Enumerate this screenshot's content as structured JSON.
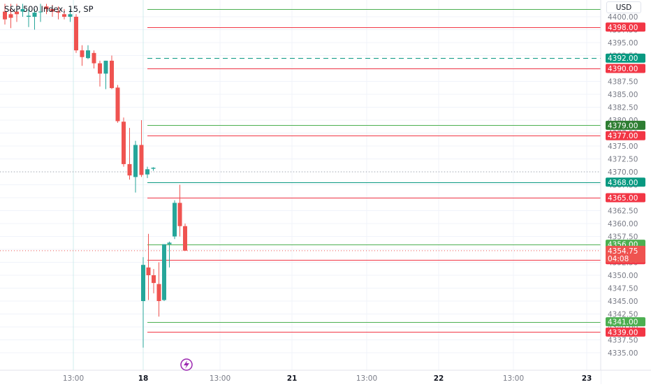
{
  "header": {
    "title": "S&P 500 Index, 15, SP",
    "currency": "USD"
  },
  "colors": {
    "bull": "#26a69a",
    "bear": "#ef5350",
    "green_line": "#4caf50",
    "teal_line": "#089981",
    "red_line": "#f23645",
    "grid": "#f0f3fa",
    "axis_text": "#787b86",
    "session_line": "#d1ecec"
  },
  "chart_data": {
    "type": "candlestick",
    "title": "S&P 500 Index, 15, SP",
    "currency": "USD",
    "y_range": [
      4334,
      4402
    ],
    "y_ticks": [
      "4400.00",
      "4397.50",
      "4395.00",
      "4392.50",
      "4390.00",
      "4387.50",
      "4385.00",
      "4382.50",
      "4380.00",
      "4377.50",
      "4375.00",
      "4372.50",
      "4370.00",
      "4367.50",
      "4365.00",
      "4362.50",
      "4360.00",
      "4357.50",
      "4355.00",
      "4352.50",
      "4350.00",
      "4347.50",
      "4345.00",
      "4342.50",
      "4340.00",
      "4337.50",
      "4335.00"
    ],
    "x_ticks": [
      "13:00",
      "18",
      "13:00",
      "21",
      "13:00",
      "22",
      "13:00",
      "23"
    ],
    "candles": [
      {
        "o": 4401.0,
        "h": 4402.5,
        "l": 4398.5,
        "c": 4399.5
      },
      {
        "o": 4400.5,
        "h": 4402.5,
        "l": 4397.8,
        "c": 4399.8
      },
      {
        "o": 4401.0,
        "h": 4402.5,
        "l": 4399.0,
        "c": 4400.5
      },
      {
        "o": 4401.0,
        "h": 4402.5,
        "l": 4400.0,
        "c": 4401.5
      },
      {
        "o": 4400.0,
        "h": 4401.5,
        "l": 4398.0,
        "c": 4400.2
      },
      {
        "o": 4400.0,
        "h": 4401.5,
        "l": 4397.5,
        "c": 4400.8
      },
      {
        "o": 4401.0,
        "h": 4402.5,
        "l": 4399.0,
        "c": 4401.0
      },
      {
        "o": 4402.0,
        "h": 4402.5,
        "l": 4400.5,
        "c": 4401.5
      },
      {
        "o": 4401.5,
        "h": 4402.3,
        "l": 4400.0,
        "c": 4401.0
      },
      {
        "o": 4401.0,
        "h": 4402.0,
        "l": 4399.5,
        "c": 4400.8
      },
      {
        "o": 4400.5,
        "h": 4401.5,
        "l": 4399.5,
        "c": 4400.0
      },
      {
        "o": 4400.0,
        "h": 4401.5,
        "l": 4399.0,
        "c": 4400.5
      },
      {
        "o": 4400.0,
        "h": 4400.5,
        "l": 4393.0,
        "c": 4393.5
      },
      {
        "o": 4393.5,
        "h": 4394.5,
        "l": 4390.5,
        "c": 4392.2
      },
      {
        "o": 4392.0,
        "h": 4394.5,
        "l": 4391.8,
        "c": 4393.5
      },
      {
        "o": 4393.0,
        "h": 4393.5,
        "l": 4390.0,
        "c": 4391.0
      },
      {
        "o": 4391.0,
        "h": 4391.5,
        "l": 4386.5,
        "c": 4389.0
      },
      {
        "o": 4389.0,
        "h": 4391.5,
        "l": 4386.0,
        "c": 4391.5
      },
      {
        "o": 4391.5,
        "h": 4392.5,
        "l": 4386.0,
        "c": 4386.2
      },
      {
        "o": 4386.3,
        "h": 4386.8,
        "l": 4379.5,
        "c": 4379.8
      },
      {
        "o": 4379.7,
        "h": 4380.5,
        "l": 4371.0,
        "c": 4371.5
      },
      {
        "o": 4371.5,
        "h": 4378.5,
        "l": 4368.5,
        "c": 4369.3
      },
      {
        "o": 4369.0,
        "h": 4376.0,
        "l": 4366.0,
        "c": 4375.2
      },
      {
        "o": 4375.2,
        "h": 4380.0,
        "l": 4369.0,
        "c": 4369.4
      },
      {
        "o": 4369.5,
        "h": 4371.0,
        "l": 4368.8,
        "c": 4370.5
      },
      {
        "o": 4370.6,
        "h": 4370.9,
        "l": 4370.2,
        "c": 4370.8
      },
      {
        "o": 4345.0,
        "h": 4353.5,
        "l": 4336.0,
        "c": 4352.0
      },
      {
        "o": 4351.5,
        "h": 4358.0,
        "l": 4345.2,
        "c": 4350.0
      },
      {
        "o": 4350.0,
        "h": 4351.2,
        "l": 4346.5,
        "c": 4348.5
      },
      {
        "o": 4348.3,
        "h": 4352.5,
        "l": 4342.0,
        "c": 4345.0
      },
      {
        "o": 4345.2,
        "h": 4356.0,
        "l": 4345.0,
        "c": 4356.0
      },
      {
        "o": 4356.0,
        "h": 4356.5,
        "l": 4351.5,
        "c": 4356.3
      },
      {
        "o": 4357.5,
        "h": 4364.5,
        "l": 4357.0,
        "c": 4364.0
      },
      {
        "o": 4364.0,
        "h": 4367.5,
        "l": 4357.5,
        "c": 4359.5
      },
      {
        "o": 4359.5,
        "h": 4360.0,
        "l": 4354.7,
        "c": 4354.75
      }
    ],
    "levels": [
      {
        "price": 4401.5,
        "color_key": "green_line",
        "style": "solid",
        "tag": ""
      },
      {
        "price": 4398.0,
        "color_key": "red_line",
        "style": "solid",
        "tag": "4398.00"
      },
      {
        "price": 4392.0,
        "color_key": "teal_line",
        "style": "dashed",
        "tag": "4392.00"
      },
      {
        "price": 4390.0,
        "color_key": "red_line",
        "style": "solid",
        "tag": "4390.00"
      },
      {
        "price": 4379.0,
        "color_key": "green_line",
        "style": "solid",
        "tag": "4379.00",
        "tag_color": "#2e7d32"
      },
      {
        "price": 4377.0,
        "color_key": "red_line",
        "style": "solid",
        "tag": "4377.00"
      },
      {
        "price": 4368.0,
        "color_key": "teal_line",
        "style": "solid",
        "tag": "4368.00",
        "tag_color": "#089981"
      },
      {
        "price": 4365.0,
        "color_key": "red_line",
        "style": "solid",
        "tag": "4365.00"
      },
      {
        "price": 4356.0,
        "color_key": "green_line",
        "style": "solid",
        "tag": "4356.00"
      },
      {
        "price": 4353.0,
        "color_key": "red_line",
        "style": "solid",
        "tag": "4353.00"
      },
      {
        "price": 4341.0,
        "color_key": "green_line",
        "style": "solid",
        "tag": "4341.00"
      },
      {
        "price": 4339.0,
        "color_key": "red_line",
        "style": "solid",
        "tag": "4339.00"
      }
    ],
    "last_price": {
      "value": "4354.75",
      "countdown": "04:08"
    },
    "prev_close": 4370.0
  }
}
